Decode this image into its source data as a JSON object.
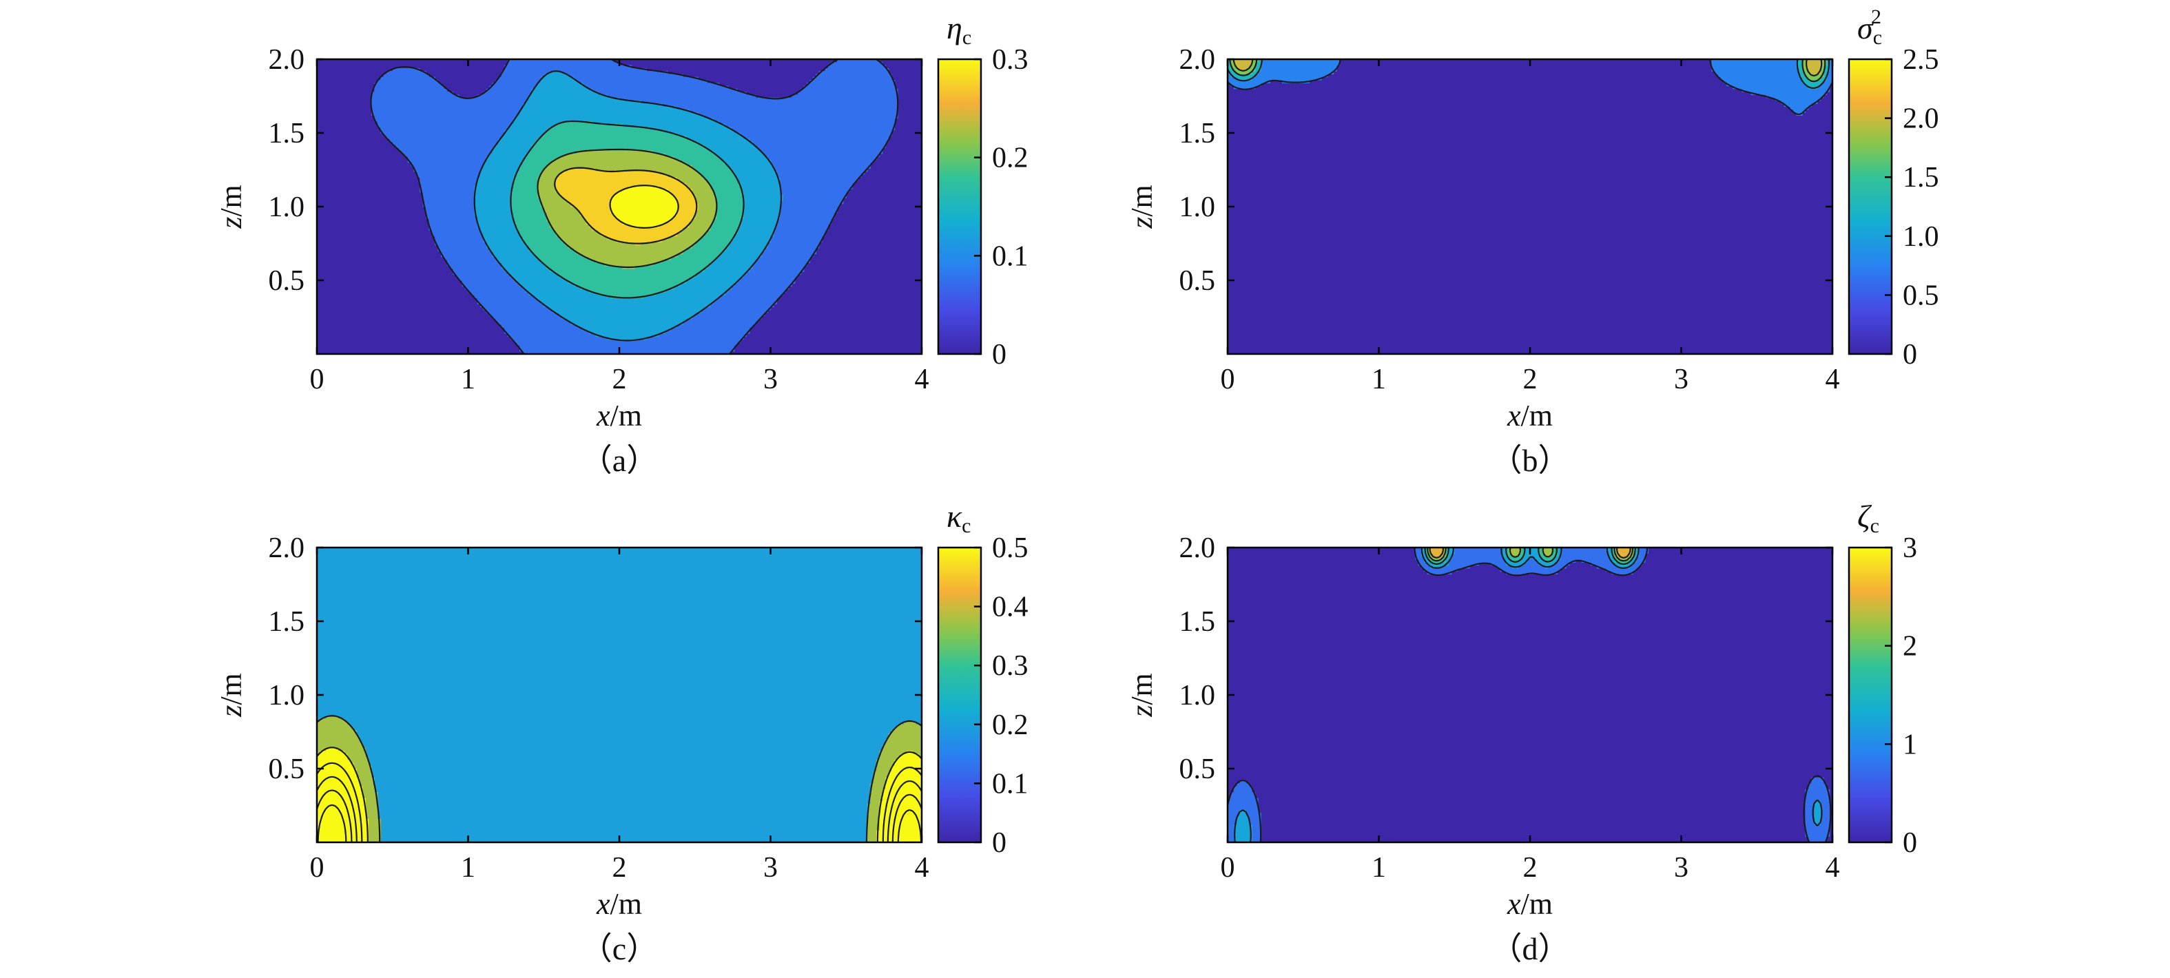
{
  "chart_data": [
    {
      "panel": "a",
      "type": "heatmap",
      "subtype": "filled-contour",
      "caption": "（a）",
      "xlabel": {
        "var": "x",
        "unit": "/m"
      },
      "ylabel": {
        "var": "z",
        "unit": "/m"
      },
      "xlim": [
        0,
        4
      ],
      "ylim": [
        0,
        2
      ],
      "xticks": [
        "0",
        "1",
        "2",
        "3",
        "4"
      ],
      "xtick_values": [
        0,
        1,
        2,
        3,
        4
      ],
      "yticks": [
        "0.5",
        "1.0",
        "1.5",
        "2.0"
      ],
      "ytick_values": [
        0.5,
        1.0,
        1.5,
        2.0
      ],
      "colorbar": {
        "label": {
          "sym": "η",
          "sub": "c",
          "sup": ""
        },
        "range": [
          0,
          0.3
        ],
        "ticks": [
          "0",
          "0.1",
          "0.2",
          "0.3"
        ],
        "tick_values": [
          0,
          0.1,
          0.2,
          0.3
        ],
        "levels": [
          0.05,
          0.1,
          0.15,
          0.2,
          0.25,
          0.3
        ]
      },
      "baseline": 0.0,
      "features": [
        {
          "x": 2.05,
          "z": 1.05,
          "sx": 0.75,
          "sz": 0.48,
          "amp": 0.22
        },
        {
          "x": 2.22,
          "z": 1.0,
          "sx": 0.22,
          "sz": 0.14,
          "amp": 0.09
        },
        {
          "x": 1.68,
          "z": 1.17,
          "sx": 0.13,
          "sz": 0.09,
          "amp": 0.06
        },
        {
          "x": 2.05,
          "z": 0.1,
          "sx": 0.6,
          "sz": 0.9,
          "amp": 0.07
        },
        {
          "x": 3.6,
          "z": 1.75,
          "sx": 0.32,
          "sz": 0.4,
          "amp": 0.06
        },
        {
          "x": 0.55,
          "z": 1.75,
          "sx": 0.28,
          "sz": 0.3,
          "amp": 0.055
        },
        {
          "x": 1.55,
          "z": 2.0,
          "sx": 0.22,
          "sz": 0.4,
          "amp": 0.06
        }
      ]
    },
    {
      "panel": "b",
      "type": "heatmap",
      "subtype": "filled-contour",
      "caption": "（b）",
      "xlabel": {
        "var": "x",
        "unit": "/m"
      },
      "ylabel": {
        "var": "z",
        "unit": "/m"
      },
      "xlim": [
        0,
        4
      ],
      "ylim": [
        0,
        2
      ],
      "xticks": [
        "0",
        "1",
        "2",
        "3",
        "4"
      ],
      "xtick_values": [
        0,
        1,
        2,
        3,
        4
      ],
      "yticks": [
        "0.5",
        "1.0",
        "1.5",
        "2.0"
      ],
      "ytick_values": [
        0.5,
        1.0,
        1.5,
        2.0
      ],
      "colorbar": {
        "label": {
          "sym": "σ",
          "sub": "c",
          "sup": "2"
        },
        "range": [
          0,
          2.5
        ],
        "ticks": [
          "0",
          "0.5",
          "1.0",
          "1.5",
          "2.0",
          "2.5"
        ],
        "tick_values": [
          0,
          0.5,
          1.0,
          1.5,
          2.0,
          2.5
        ],
        "levels": [
          0.5,
          1.0,
          1.5,
          2.0
        ]
      },
      "baseline": 0.0,
      "features": [
        {
          "x": 0.1,
          "z": 2.0,
          "sx": 0.07,
          "sz": 0.09,
          "amp": 2.3
        },
        {
          "x": 0.45,
          "z": 2.0,
          "sx": 0.45,
          "sz": 0.24,
          "amp": 0.62
        },
        {
          "x": 3.88,
          "z": 1.97,
          "sx": 0.06,
          "sz": 0.1,
          "amp": 2.1
        },
        {
          "x": 3.55,
          "z": 2.0,
          "sx": 0.42,
          "sz": 0.27,
          "amp": 0.72
        },
        {
          "x": 3.8,
          "z": 1.55,
          "sx": 0.15,
          "sz": 0.15,
          "amp": 0.3
        }
      ]
    },
    {
      "panel": "c",
      "type": "heatmap",
      "subtype": "filled-contour",
      "caption": "（c）",
      "xlabel": {
        "var": "x",
        "unit": "/m"
      },
      "ylabel": {
        "var": "z",
        "unit": "/m"
      },
      "xlim": [
        0,
        4
      ],
      "ylim": [
        0,
        2
      ],
      "xticks": [
        "0",
        "1",
        "2",
        "3",
        "4"
      ],
      "xtick_values": [
        0,
        1,
        2,
        3,
        4
      ],
      "yticks": [
        "0.5",
        "1.0",
        "1.5",
        "2.0"
      ],
      "ytick_values": [
        0.5,
        1.0,
        1.5,
        2.0
      ],
      "colorbar": {
        "label": {
          "sym": "κ",
          "sub": "c",
          "sup": ""
        },
        "range": [
          0,
          0.5
        ],
        "ticks": [
          "0",
          "0.1",
          "0.2",
          "0.3",
          "0.4",
          "0.5"
        ],
        "tick_values": [
          0,
          0.1,
          0.2,
          0.3,
          0.4,
          0.5
        ],
        "levels": [
          0.25,
          0.5,
          0.8,
          1.2,
          1.7,
          2.3
        ]
      },
      "baseline": 0.2,
      "features": [
        {
          "x": 0.1,
          "z": 0.0,
          "sx": 0.11,
          "sz": 0.3,
          "amp": 3.0
        },
        {
          "x": 3.92,
          "z": 0.0,
          "sx": 0.1,
          "sz": 0.29,
          "amp": 2.8
        }
      ]
    },
    {
      "panel": "d",
      "type": "heatmap",
      "subtype": "filled-contour",
      "caption": "（d）",
      "xlabel": {
        "var": "x",
        "unit": "/m"
      },
      "ylabel": {
        "var": "z",
        "unit": "/m"
      },
      "xlim": [
        0,
        4
      ],
      "ylim": [
        0,
        2
      ],
      "xticks": [
        "0",
        "1",
        "2",
        "3",
        "4"
      ],
      "xtick_values": [
        0,
        1,
        2,
        3,
        4
      ],
      "yticks": [
        "0.5",
        "1.0",
        "1.5",
        "2.0"
      ],
      "ytick_values": [
        0.5,
        1.0,
        1.5,
        2.0
      ],
      "colorbar": {
        "label": {
          "sym": "ζ",
          "sub": "c",
          "sup": ""
        },
        "range": [
          0,
          3
        ],
        "ticks": [
          "0",
          "1",
          "2",
          "3"
        ],
        "tick_values": [
          0,
          1,
          2,
          3
        ],
        "levels": [
          0.5,
          1.0,
          1.5,
          2.0,
          2.5
        ]
      },
      "baseline": 0.0,
      "features": [
        {
          "x": 1.38,
          "z": 1.99,
          "sx": 0.05,
          "sz": 0.07,
          "amp": 2.6
        },
        {
          "x": 1.9,
          "z": 1.98,
          "sx": 0.05,
          "sz": 0.07,
          "amp": 1.6
        },
        {
          "x": 2.12,
          "z": 1.98,
          "sx": 0.05,
          "sz": 0.07,
          "amp": 1.6
        },
        {
          "x": 2.62,
          "z": 1.99,
          "sx": 0.05,
          "sz": 0.07,
          "amp": 2.6
        },
        {
          "x": 1.42,
          "z": 2.0,
          "sx": 0.18,
          "sz": 0.16,
          "amp": 0.75
        },
        {
          "x": 2.0,
          "z": 2.0,
          "sx": 0.25,
          "sz": 0.17,
          "amp": 0.8
        },
        {
          "x": 2.6,
          "z": 2.0,
          "sx": 0.18,
          "sz": 0.16,
          "amp": 0.75
        },
        {
          "x": 0.1,
          "z": 0.05,
          "sx": 0.09,
          "sz": 0.28,
          "amp": 1.2
        },
        {
          "x": 3.9,
          "z": 0.2,
          "sx": 0.07,
          "sz": 0.2,
          "amp": 1.1
        }
      ]
    }
  ]
}
